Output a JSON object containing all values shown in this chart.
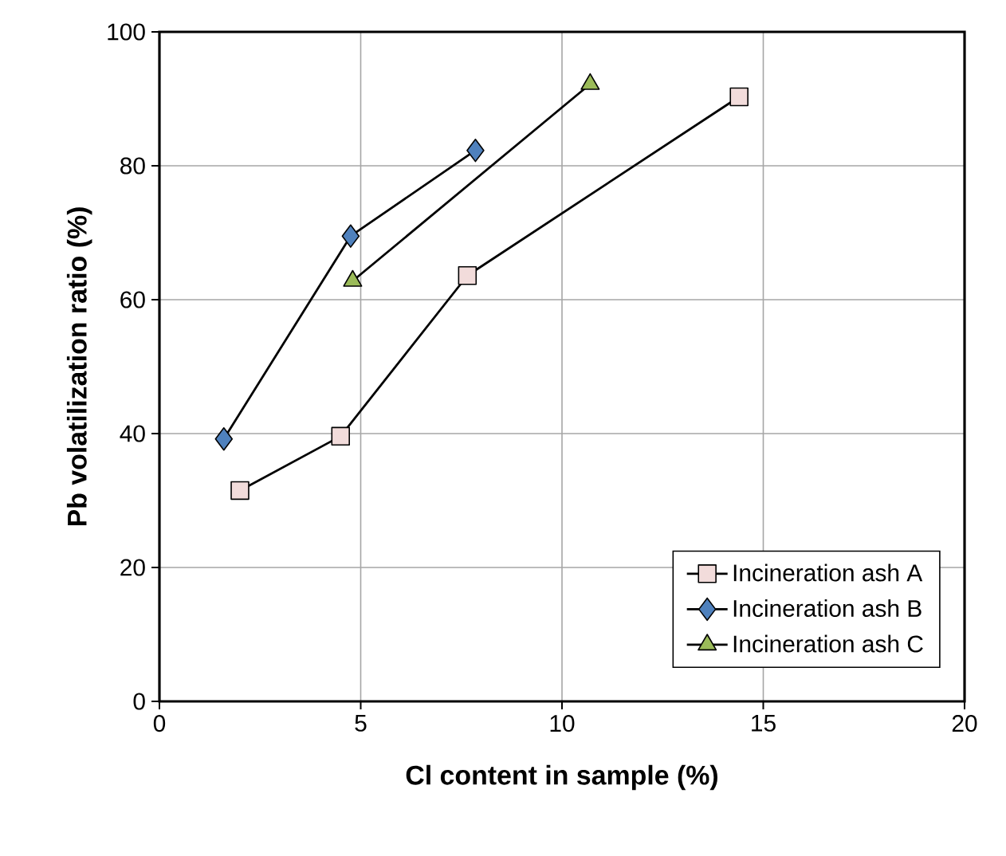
{
  "chart_data": {
    "type": "line",
    "xlabel": "Cl content in sample (%)",
    "ylabel": "Pb volatilization ratio (%)",
    "xlim": [
      0,
      20
    ],
    "xticks": [
      0,
      5,
      10,
      15,
      20
    ],
    "ylim": [
      0,
      100
    ],
    "yticks": [
      0,
      20,
      40,
      60,
      80,
      100
    ],
    "grid": true,
    "legend": "bottom right",
    "line_style": "solid",
    "series": [
      {
        "name": "Incineration ash A",
        "color": "#f2dcdb",
        "marker": "square",
        "x": [
          2.0,
          4.5,
          7.65,
          14.4
        ],
        "values": [
          31.5,
          39.6,
          63.6,
          90.3
        ]
      },
      {
        "name": "Incineration ash B",
        "color": "#4f81bd",
        "marker": "diamond",
        "x": [
          1.6,
          4.75,
          7.85
        ],
        "values": [
          39.2,
          69.5,
          82.3
        ]
      },
      {
        "name": "Incineration ash C",
        "color": "#9bbb59",
        "marker": "triangle",
        "x": [
          4.8,
          10.7
        ],
        "values": [
          62.8,
          92.2
        ]
      }
    ]
  }
}
